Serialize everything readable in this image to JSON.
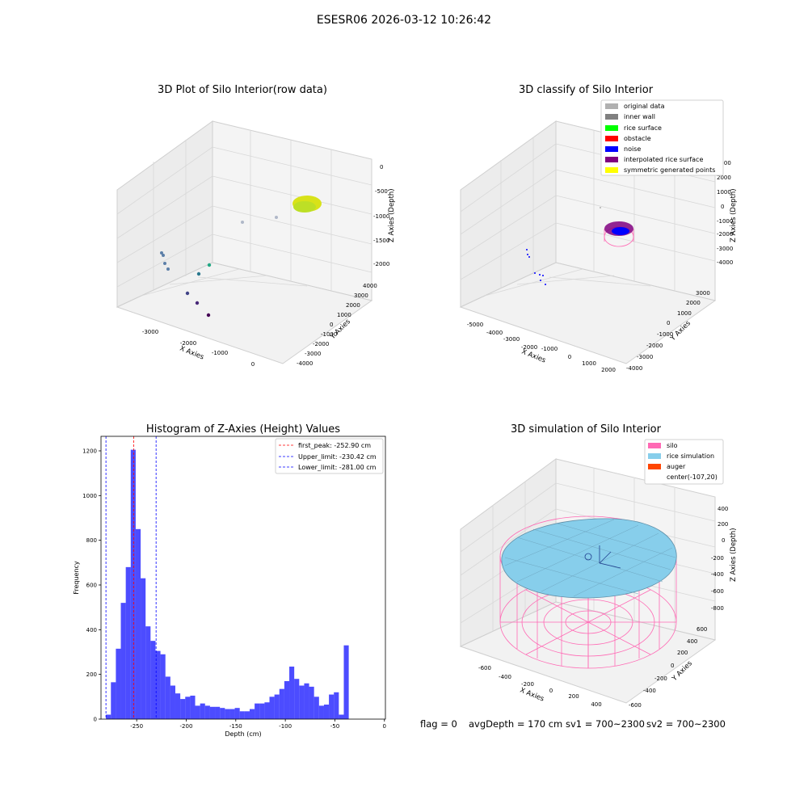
{
  "figure": {
    "suptitle": "ESESR06 2026-03-12 10:26:42",
    "status": {
      "flag": "flag = 0",
      "avg_depth": "avgDepth = 170 cm",
      "sv1": "sv1 = 700~2300",
      "sv2": "sv2 = 700~2300"
    }
  },
  "chart_data": [
    {
      "type": "scatter",
      "projection": "3d",
      "title": "3D Plot of Silo Interior(row data)",
      "xlabel": "X Axies",
      "ylabel": "Y Axies",
      "zlabel": "Z Axies (Depth)",
      "x_ticks": [
        "-3000",
        "-2000",
        "-1000",
        "0"
      ],
      "y_ticks": [
        "-4000",
        "-3000",
        "-2000",
        "-1000",
        "0",
        "1000",
        "2000",
        "3000",
        "4000"
      ],
      "z_ticks": [
        "0",
        "-500",
        "-1000",
        "-1500",
        "-2000"
      ],
      "grid": true,
      "colormap": "viridis",
      "annotations": []
    },
    {
      "type": "scatter",
      "projection": "3d",
      "title": "3D classify of Silo Interior",
      "xlabel": "X Axies",
      "ylabel": "Y Axies",
      "zlabel": "Z Axies (Depth)",
      "x_ticks": [
        "-5000",
        "-4000",
        "-3000",
        "-2000",
        "-1000",
        "0",
        "1000",
        "2000"
      ],
      "y_ticks": [
        "-4000",
        "-3000",
        "-2000",
        "-1000",
        "0",
        "1000",
        "2000",
        "3000"
      ],
      "z_ticks": [
        "3000",
        "2000",
        "1000",
        "0",
        "-1000",
        "-2000",
        "-3000",
        "-4000"
      ],
      "legend_position": "top-right",
      "legend": [
        {
          "label": "original data",
          "color": "#b0b0b0"
        },
        {
          "label": "inner wall",
          "color": "#808080"
        },
        {
          "label": "rice surface",
          "color": "#00ff00"
        },
        {
          "label": "obstacle",
          "color": "#ff0000"
        },
        {
          "label": "noise",
          "color": "#0000ff"
        },
        {
          "label": "interpolated rice surface",
          "color": "#800080"
        },
        {
          "label": "symmetric generated points",
          "color": "#ffff00"
        }
      ],
      "grid": true
    },
    {
      "type": "bar",
      "title": "Histogram of Z-Axies (Height) Values",
      "xlabel": "Depth (cm)",
      "ylabel": "Frequency",
      "xlim": [
        -286,
        1
      ],
      "ylim": [
        0,
        1265
      ],
      "x_ticks": [
        -250,
        -200,
        -150,
        -100,
        -50,
        0
      ],
      "y_ticks": [
        0,
        200,
        400,
        600,
        800,
        1000,
        1200
      ],
      "bin_width": 5,
      "bin_start": -281,
      "color": "#0000ff",
      "values": [
        20,
        165,
        315,
        520,
        680,
        1205,
        850,
        630,
        415,
        350,
        305,
        290,
        190,
        150,
        115,
        90,
        100,
        105,
        60,
        70,
        60,
        55,
        55,
        50,
        45,
        45,
        50,
        35,
        35,
        45,
        70,
        70,
        75,
        100,
        110,
        135,
        170,
        235,
        180,
        150,
        160,
        145,
        100,
        60,
        65,
        110,
        120,
        20,
        330
      ],
      "vlines": [
        {
          "label": "first_peak: -252.90 cm",
          "x": -252.9,
          "color": "#ff0000"
        },
        {
          "label": "Upper_limit: -230.42 cm",
          "x": -230.42,
          "color": "#0000ff"
        },
        {
          "label": "Lower_limit: -281.00 cm",
          "x": -281.0,
          "color": "#0000ff"
        }
      ],
      "legend_position": "top-right",
      "grid": false
    },
    {
      "type": "scatter",
      "projection": "3d",
      "title": "3D simulation of Silo Interior",
      "xlabel": "X Axies",
      "ylabel": "Y Axies",
      "zlabel": "Z Axies (Depth)",
      "x_ticks": [
        "-600",
        "-400",
        "-200",
        "0",
        "200",
        "400"
      ],
      "y_ticks": [
        "-600",
        "-400",
        "-200",
        "0",
        "200",
        "400",
        "600"
      ],
      "z_ticks": [
        "400",
        "200",
        "0",
        "-200",
        "-400",
        "-600",
        "-800"
      ],
      "legend_position": "top-right",
      "legend": [
        {
          "label": "silo",
          "color": "#ff69b4"
        },
        {
          "label": "rice simulation",
          "color": "#87ceeb"
        },
        {
          "label": "auger",
          "color": "#ff4500"
        },
        {
          "label": "center(-107,20)",
          "color": ""
        }
      ],
      "grid": true
    }
  ]
}
